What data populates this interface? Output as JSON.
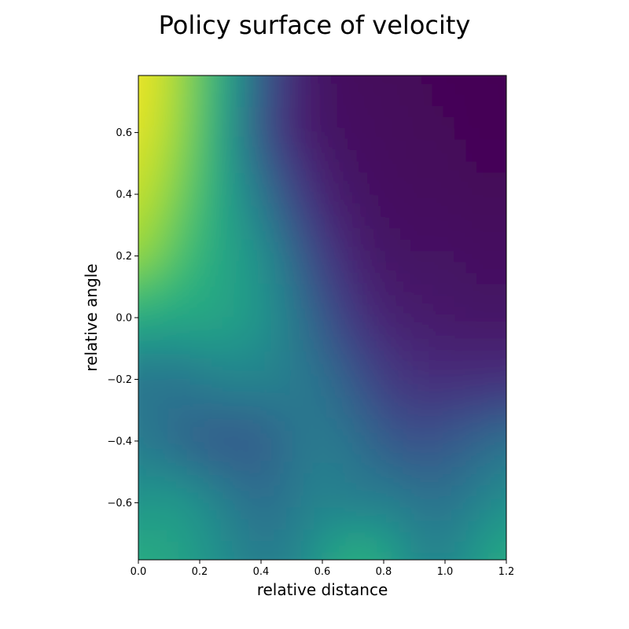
{
  "chart_data": {
    "type": "heatmap",
    "title": "Policy surface of velocity",
    "xlabel": "relative distance",
    "ylabel": "relative angle",
    "xlim": [
      0.0,
      1.2
    ],
    "ylim": [
      -0.785,
      0.785
    ],
    "x_ticks": [
      0.0,
      0.2,
      0.4,
      0.6,
      0.8,
      1.0,
      1.2
    ],
    "x_tick_labels": [
      "0.0",
      "0.2",
      "0.4",
      "0.6",
      "0.8",
      "1.0",
      "1.2"
    ],
    "y_ticks": [
      -0.6,
      -0.4,
      -0.2,
      0.0,
      0.2,
      0.4,
      0.6
    ],
    "y_tick_labels": [
      "−0.6",
      "−0.4",
      "−0.2",
      "0.0",
      "0.2",
      "0.4",
      "0.6"
    ],
    "colormap": "viridis",
    "value_range": [
      0,
      1
    ],
    "grid": false,
    "legend": "none",
    "x": [
      0.0,
      0.1,
      0.2,
      0.3,
      0.4,
      0.5,
      0.6,
      0.7,
      0.8,
      0.9,
      1.0,
      1.1,
      1.2
    ],
    "y": [
      0.785,
      0.6,
      0.4,
      0.2,
      0.0,
      -0.2,
      -0.4,
      -0.6,
      -0.785
    ],
    "z": [
      [
        0.98,
        0.9,
        0.75,
        0.55,
        0.3,
        0.12,
        0.05,
        0.03,
        0.02,
        0.02,
        0.01,
        0.01,
        0.0
      ],
      [
        0.96,
        0.88,
        0.74,
        0.52,
        0.28,
        0.11,
        0.06,
        0.04,
        0.03,
        0.02,
        0.02,
        0.01,
        0.01
      ],
      [
        0.92,
        0.83,
        0.7,
        0.55,
        0.4,
        0.22,
        0.1,
        0.06,
        0.04,
        0.03,
        0.03,
        0.02,
        0.02
      ],
      [
        0.85,
        0.75,
        0.65,
        0.58,
        0.5,
        0.35,
        0.18,
        0.1,
        0.06,
        0.05,
        0.05,
        0.04,
        0.04
      ],
      [
        0.62,
        0.6,
        0.6,
        0.58,
        0.52,
        0.42,
        0.28,
        0.16,
        0.1,
        0.08,
        0.07,
        0.06,
        0.06
      ],
      [
        0.4,
        0.38,
        0.42,
        0.45,
        0.45,
        0.42,
        0.38,
        0.28,
        0.18,
        0.14,
        0.13,
        0.13,
        0.14
      ],
      [
        0.42,
        0.36,
        0.3,
        0.28,
        0.3,
        0.38,
        0.42,
        0.38,
        0.3,
        0.25,
        0.28,
        0.32,
        0.38
      ],
      [
        0.52,
        0.55,
        0.5,
        0.42,
        0.36,
        0.4,
        0.46,
        0.42,
        0.44,
        0.4,
        0.38,
        0.44,
        0.5
      ],
      [
        0.62,
        0.6,
        0.54,
        0.48,
        0.42,
        0.45,
        0.54,
        0.66,
        0.6,
        0.48,
        0.45,
        0.54,
        0.62
      ]
    ]
  }
}
